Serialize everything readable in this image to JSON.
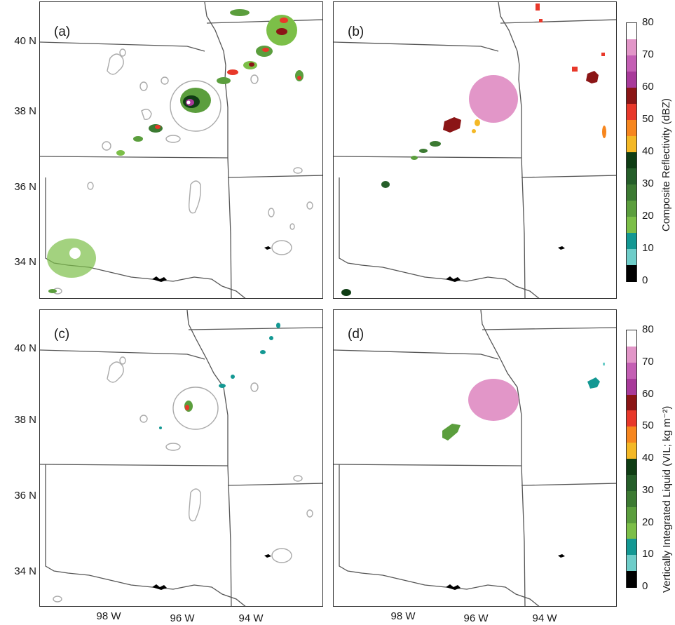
{
  "panels": [
    {
      "label": "(a)"
    },
    {
      "label": "(b)"
    },
    {
      "label": "(c)"
    },
    {
      "label": "(d)"
    }
  ],
  "lat_labels": [
    "40 N",
    "38 N",
    "36 N",
    "34 N"
  ],
  "lon_labels": [
    "98 W",
    "96 W",
    "94 W"
  ],
  "colorbar": {
    "ticks": [
      "80",
      "70",
      "60",
      "50",
      "40",
      "30",
      "20",
      "10",
      "0"
    ],
    "colors": [
      "#ffffff",
      "#e296c8",
      "#c45fb4",
      "#a83a9a",
      "#8b1516",
      "#e8382a",
      "#f7861e",
      "#f4b825",
      "#0f3d14",
      "#255e29",
      "#3c7a32",
      "#5b9e3d",
      "#7cbf48",
      "#139893",
      "#6ecdc9",
      "#000000"
    ],
    "top_title": "Composite Reflectivity (dBZ)",
    "bottom_title": "Vertically Integrated Liquid (VIL; kg m⁻²)"
  }
}
